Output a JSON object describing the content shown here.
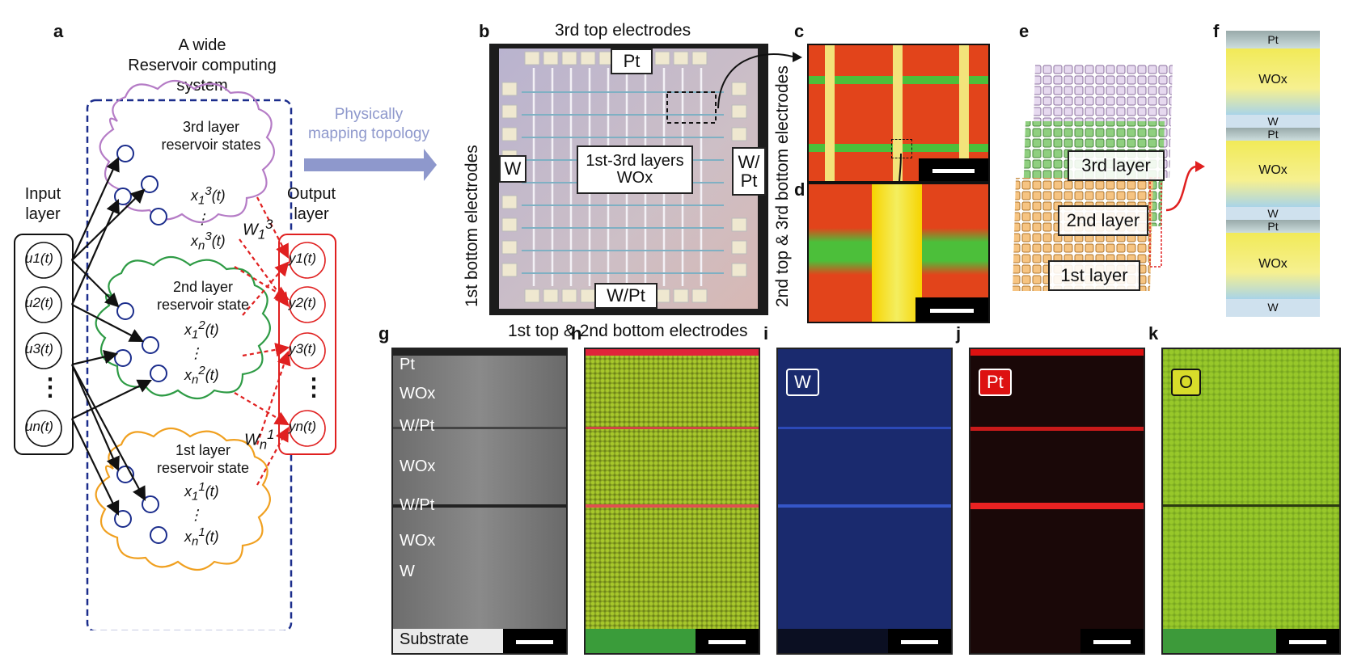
{
  "panels": {
    "a": {
      "label": "a",
      "title_line1": "A wide",
      "title_line2": "Reservoir computing",
      "title_line3": "system",
      "input_label": "Input\nlayer",
      "output_label": "Output\nlayer",
      "layer3": "3rd layer\nreservoir states",
      "layer2": "2nd layer\nreservoir state",
      "layer1": "1st layer\nreservoir state",
      "w1": "W",
      "wn": "W",
      "dots": "⋮",
      "inputs": [
        "u1(t)",
        "u2(t)",
        "u3(t)",
        "un(t)"
      ],
      "outputs": [
        "y1(t)",
        "y2(t)",
        "y3(t)",
        "yn(t)"
      ]
    },
    "mapping_line1": "Physically",
    "mapping_line2": "mapping topology",
    "b": {
      "label": "b",
      "top": "3rd top electrodes",
      "bottom": "1st top & 2nd bottom electrodes",
      "left": "1st bottom electrodes",
      "pt": "Pt",
      "w": "W",
      "wpt_right": "W/\nPt",
      "wpt_bottom": "W/Pt",
      "center_line1": "1st-3rd layers",
      "center_line2": "WOx"
    },
    "c": {
      "label": "c"
    },
    "d": {
      "label": "d",
      "side": "2nd top & 3rd bottom electrodes"
    },
    "e": {
      "label": "e",
      "l3": "3rd layer",
      "l2": "2nd layer",
      "l1": "1st layer"
    },
    "f": {
      "label": "f",
      "pt": "Pt",
      "wox": "WOx",
      "w": "W"
    },
    "g": {
      "label": "g",
      "pt": "Pt",
      "wox": "WOx",
      "wpt": "W/Pt",
      "w": "W",
      "substrate": "Substrate"
    },
    "h": {
      "label": "h"
    },
    "i": {
      "label": "i",
      "tag": "W"
    },
    "j": {
      "label": "j",
      "tag": "Pt"
    },
    "k": {
      "label": "k",
      "tag": "O"
    }
  },
  "colors": {
    "purple": "#b57cc6",
    "green": "#2e9b45",
    "orange": "#f0a020",
    "red": "#e02020",
    "navy": "#1b2d8c",
    "arrow": "#8e98cc"
  }
}
